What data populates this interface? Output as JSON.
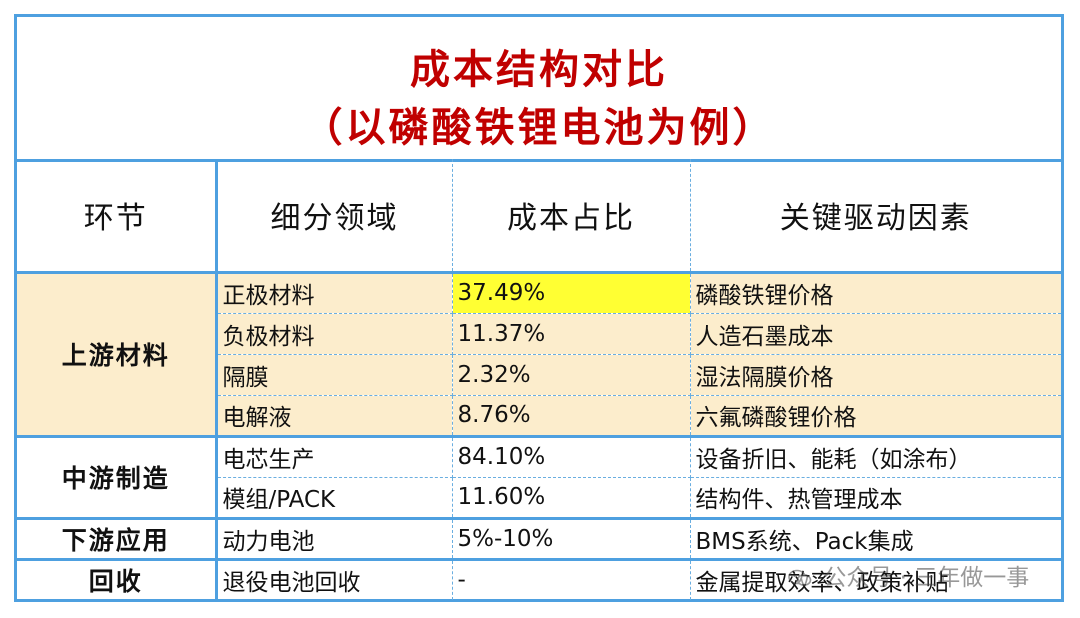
{
  "title": {
    "line1": "成本结构对比",
    "line2": "（以磷酸铁锂电池为例）"
  },
  "headers": [
    "环节",
    "细分领域",
    "成本占比",
    "关键驱动因素"
  ],
  "stages": {
    "upstream": "上游材料",
    "midstream": "中游制造",
    "downstream": "下游应用",
    "recycle": "回收"
  },
  "rows": [
    {
      "segment": "正极材料",
      "share": "37.49%",
      "driver": "磷酸铁锂价格"
    },
    {
      "segment": "负极材料",
      "share": "11.37%",
      "driver": "人造石墨成本"
    },
    {
      "segment": "隔膜",
      "share": "2.32%",
      "driver": "湿法隔膜价格"
    },
    {
      "segment": "电解液",
      "share": "8.76%",
      "driver": "六氟磷酸锂价格"
    },
    {
      "segment": "电芯生产",
      "share": "84.10%",
      "driver": "设备折旧、能耗（如涂布）"
    },
    {
      "segment": "模组/PACK",
      "share": "11.60%",
      "driver": "结构件、热管理成本"
    },
    {
      "segment": "动力电池",
      "share": "5%-10%",
      "driver": "BMS系统、Pack集成"
    },
    {
      "segment": "退役电池回收",
      "share": "-",
      "driver": "金属提取效率、政策补贴"
    }
  ],
  "colors": {
    "border": "#4ea0e0",
    "title": "#c00000",
    "upstream_bg": "#fcedcc",
    "highlight": "#ffff33"
  },
  "watermark": {
    "icon": "wechat-icon",
    "text": "公众号 · 三年做一事"
  }
}
